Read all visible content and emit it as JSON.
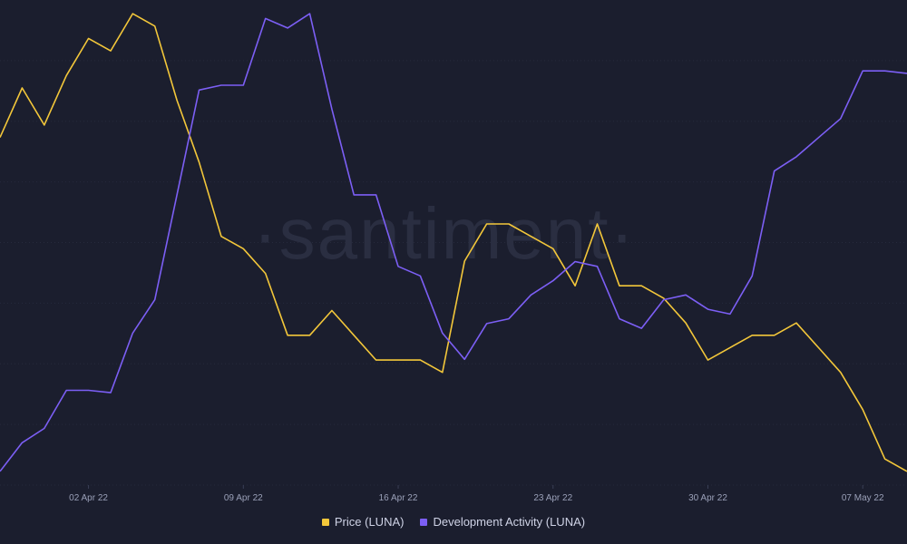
{
  "watermark": "·santiment·",
  "chart_data": {
    "type": "line",
    "grid": true,
    "x_range": [
      "2022-03-29",
      "2022-05-09"
    ],
    "x_ticks": [
      {
        "date": "2022-04-02",
        "label": "02 Apr 22"
      },
      {
        "date": "2022-04-09",
        "label": "09 Apr 22"
      },
      {
        "date": "2022-04-16",
        "label": "16 Apr 22"
      },
      {
        "date": "2022-04-23",
        "label": "23 Apr 22"
      },
      {
        "date": "2022-04-30",
        "label": "30 Apr 22"
      },
      {
        "date": "2022-05-07",
        "label": "07 May 22"
      }
    ],
    "legend_position": "bottom-center",
    "series": [
      {
        "name": "Price (LUNA)",
        "color": "#f3c73a",
        "values": [
          [
            "2022-03-29",
            104
          ],
          [
            "2022-03-30",
            106
          ],
          [
            "2022-03-31",
            104.5
          ],
          [
            "2022-04-01",
            106.5
          ],
          [
            "2022-04-02",
            108
          ],
          [
            "2022-04-03",
            107.5
          ],
          [
            "2022-04-04",
            109
          ],
          [
            "2022-04-05",
            108.5
          ],
          [
            "2022-04-06",
            105.5
          ],
          [
            "2022-04-07",
            103
          ],
          [
            "2022-04-08",
            100
          ],
          [
            "2022-04-09",
            99.5
          ],
          [
            "2022-04-10",
            98.5
          ],
          [
            "2022-04-11",
            96
          ],
          [
            "2022-04-12",
            96
          ],
          [
            "2022-04-13",
            97
          ],
          [
            "2022-04-14",
            96
          ],
          [
            "2022-04-15",
            95
          ],
          [
            "2022-04-16",
            95
          ],
          [
            "2022-04-17",
            95
          ],
          [
            "2022-04-18",
            94.5
          ],
          [
            "2022-04-19",
            99
          ],
          [
            "2022-04-20",
            100.5
          ],
          [
            "2022-04-21",
            100.5
          ],
          [
            "2022-04-22",
            100
          ],
          [
            "2022-04-23",
            99.5
          ],
          [
            "2022-04-24",
            98
          ],
          [
            "2022-04-25",
            100.5
          ],
          [
            "2022-04-26",
            98
          ],
          [
            "2022-04-27",
            98
          ],
          [
            "2022-04-28",
            97.5
          ],
          [
            "2022-04-29",
            96.5
          ],
          [
            "2022-04-30",
            95
          ],
          [
            "2022-05-01",
            95.5
          ],
          [
            "2022-05-02",
            96
          ],
          [
            "2022-05-03",
            96
          ],
          [
            "2022-05-04",
            96.5
          ],
          [
            "2022-05-05",
            95.5
          ],
          [
            "2022-05-06",
            94.5
          ],
          [
            "2022-05-07",
            93
          ],
          [
            "2022-05-08",
            91
          ],
          [
            "2022-05-09",
            90.5
          ]
        ]
      },
      {
        "name": "Development Activity (LUNA)",
        "color": "#7c5ff5",
        "values": [
          [
            "2022-03-29",
            4
          ],
          [
            "2022-03-30",
            10
          ],
          [
            "2022-03-31",
            13
          ],
          [
            "2022-04-01",
            21
          ],
          [
            "2022-04-02",
            21
          ],
          [
            "2022-04-03",
            20.5
          ],
          [
            "2022-04-04",
            33
          ],
          [
            "2022-04-05",
            40
          ],
          [
            "2022-04-06",
            62
          ],
          [
            "2022-04-07",
            84
          ],
          [
            "2022-04-08",
            85
          ],
          [
            "2022-04-09",
            85
          ],
          [
            "2022-04-10",
            99
          ],
          [
            "2022-04-11",
            97
          ],
          [
            "2022-04-12",
            100
          ],
          [
            "2022-04-13",
            80
          ],
          [
            "2022-04-14",
            62
          ],
          [
            "2022-04-15",
            62
          ],
          [
            "2022-04-16",
            47
          ],
          [
            "2022-04-17",
            45
          ],
          [
            "2022-04-18",
            33
          ],
          [
            "2022-04-19",
            27.5
          ],
          [
            "2022-04-20",
            35
          ],
          [
            "2022-04-21",
            36
          ],
          [
            "2022-04-22",
            41
          ],
          [
            "2022-04-23",
            44
          ],
          [
            "2022-04-24",
            48
          ],
          [
            "2022-04-25",
            47
          ],
          [
            "2022-04-26",
            36
          ],
          [
            "2022-04-27",
            34
          ],
          [
            "2022-04-28",
            40
          ],
          [
            "2022-04-29",
            41
          ],
          [
            "2022-04-30",
            38
          ],
          [
            "2022-05-01",
            37
          ],
          [
            "2022-05-02",
            45
          ],
          [
            "2022-05-03",
            67
          ],
          [
            "2022-05-04",
            70
          ],
          [
            "2022-05-05",
            74
          ],
          [
            "2022-05-06",
            78
          ],
          [
            "2022-05-07",
            88
          ],
          [
            "2022-05-08",
            88
          ],
          [
            "2022-05-09",
            87.5
          ]
        ]
      }
    ]
  }
}
